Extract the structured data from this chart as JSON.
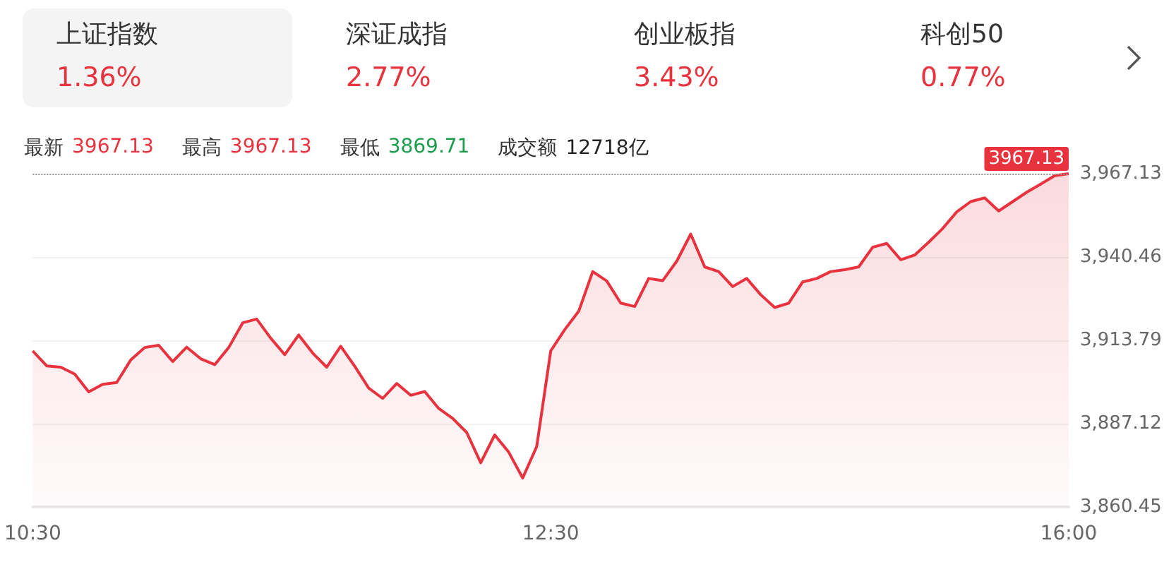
{
  "chart_data": {
    "type": "area",
    "categories": [
      "10:30",
      null,
      null,
      null,
      null,
      null,
      null,
      null,
      null,
      null,
      null,
      null,
      null,
      null,
      null,
      null,
      null,
      null,
      null,
      null,
      null,
      null,
      null,
      null,
      null,
      null,
      null,
      null,
      null,
      null,
      null,
      null,
      null,
      null,
      null,
      null,
      null,
      "12:30",
      null,
      null,
      null,
      null,
      null,
      null,
      null,
      null,
      null,
      null,
      null,
      null,
      null,
      null,
      null,
      null,
      null,
      null,
      null,
      null,
      null,
      null,
      null,
      null,
      null,
      null,
      null,
      null,
      null,
      null,
      null,
      null,
      null,
      null,
      null,
      null,
      "16:00"
    ],
    "series": [
      {
        "color": "#e8333f",
        "values": [
          3910.4,
          3905.6,
          3905.2,
          3903.0,
          3897.3,
          3899.7,
          3900.3,
          3907.5,
          3911.5,
          3912.2,
          3907.0,
          3911.6,
          3907.9,
          3906.0,
          3911.5,
          3919.4,
          3920.6,
          3914.5,
          3909.2,
          3915.5,
          3909.7,
          3905.2,
          3911.9,
          3905.5,
          3898.5,
          3895.2,
          3900.0,
          3896.2,
          3897.4,
          3892.0,
          3888.8,
          3884.3,
          3874.6,
          3883.5,
          3878.0,
          3869.71,
          3879.8,
          3910.4,
          3917.2,
          3923.1,
          3935.8,
          3932.8,
          3925.7,
          3924.6,
          3933.6,
          3932.9,
          3939.1,
          3947.8,
          3937.3,
          3935.8,
          3931.0,
          3933.6,
          3928.4,
          3924.3,
          3925.7,
          3932.5,
          3933.6,
          3935.8,
          3936.4,
          3937.3,
          3943.6,
          3944.8,
          3939.6,
          3941.1,
          3945.2,
          3949.6,
          3954.9,
          3958.2,
          3959.4,
          3955.2,
          3958.2,
          3961.2,
          3963.8,
          3966.5,
          3967.13
        ]
      }
    ],
    "ylim": [
      3860.45,
      3967.13
    ],
    "yticks": [
      {
        "value": 3860.45,
        "label": "3,860.45"
      },
      {
        "value": 3887.12,
        "label": "3,887.12"
      },
      {
        "value": 3913.79,
        "label": "3,913.79"
      },
      {
        "value": 3940.46,
        "label": "3,940.46"
      },
      {
        "value": 3967.13,
        "label": "3,967.13"
      }
    ],
    "grid": "y",
    "marker": "none",
    "ref_lines": [
      {
        "axis": "y",
        "value": 3967.13,
        "label": "3967.13",
        "line_style": "dotted"
      }
    ],
    "annotations": [
      "上证指数",
      "1.36%",
      "深证成指",
      "2.77%",
      "创业板指",
      "3.43%",
      "科创50",
      "0.77%",
      "最新",
      "3967.13",
      "最高",
      "3967.13",
      "最低",
      "3869.71",
      "成交额",
      "12718亿"
    ]
  }
}
